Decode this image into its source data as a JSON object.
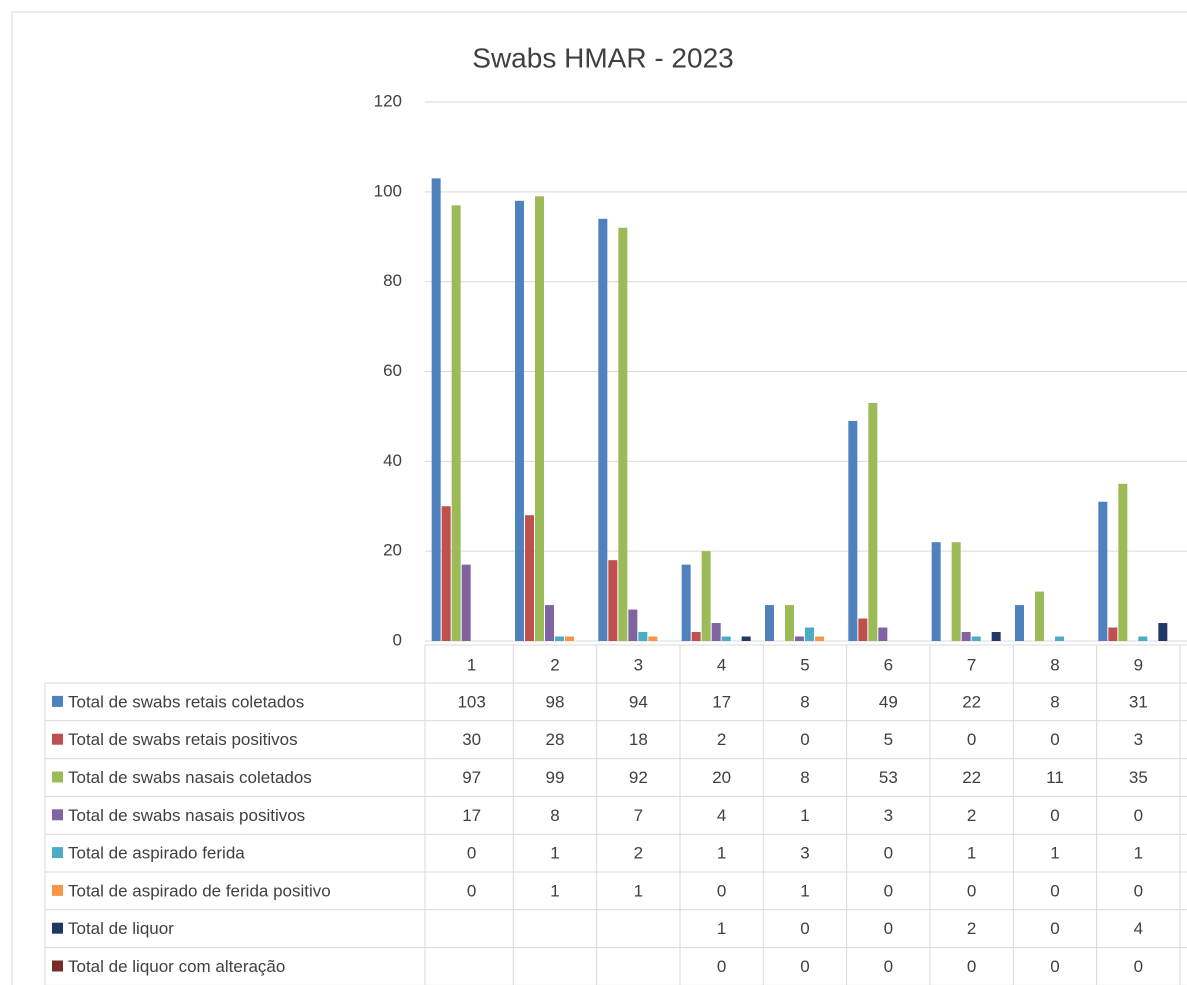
{
  "chart_data": {
    "type": "bar",
    "title": "Swabs HMAR - 2023",
    "categories": [
      "1",
      "2",
      "3",
      "4",
      "5",
      "6",
      "7",
      "8",
      "9"
    ],
    "ylim": [
      0,
      120
    ],
    "yticks": [
      0,
      20,
      40,
      60,
      80,
      100,
      120
    ],
    "grid": true,
    "legend": "table",
    "series": [
      {
        "name": "Total de swabs retais coletados",
        "color": "#4f81bd",
        "values": [
          103,
          98,
          94,
          17,
          8,
          49,
          22,
          8,
          31
        ]
      },
      {
        "name": "Total de swabs retais positivos",
        "color": "#c0504d",
        "values": [
          30,
          28,
          18,
          2,
          0,
          5,
          0,
          0,
          3
        ]
      },
      {
        "name": "Total de swabs nasais coletados",
        "color": "#9bbb59",
        "values": [
          97,
          99,
          92,
          20,
          8,
          53,
          22,
          11,
          35
        ]
      },
      {
        "name": "Total de swabs nasais positivos",
        "color": "#8064a2",
        "values": [
          17,
          8,
          7,
          4,
          1,
          3,
          2,
          0,
          0
        ]
      },
      {
        "name": "Total de aspirado ferida",
        "color": "#4bacc6",
        "values": [
          0,
          1,
          2,
          1,
          3,
          0,
          1,
          1,
          1
        ]
      },
      {
        "name": "Total de aspirado de ferida positivo",
        "color": "#f79646",
        "values": [
          0,
          1,
          1,
          0,
          1,
          0,
          0,
          0,
          0
        ]
      },
      {
        "name": "Total de liquor",
        "color": "#1f3864",
        "values": [
          null,
          null,
          null,
          1,
          0,
          0,
          2,
          0,
          4
        ]
      },
      {
        "name": "Total de liquor com alteração",
        "color": "#772c2a",
        "values": [
          null,
          null,
          null,
          0,
          0,
          0,
          0,
          0,
          0
        ]
      }
    ]
  }
}
